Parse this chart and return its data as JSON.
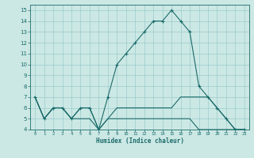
{
  "xlabel": "Humidex (Indice chaleur)",
  "xlim": [
    -0.5,
    23.5
  ],
  "ylim": [
    4,
    15.5
  ],
  "xticks": [
    0,
    1,
    2,
    3,
    4,
    5,
    6,
    7,
    8,
    9,
    10,
    11,
    12,
    13,
    14,
    15,
    16,
    17,
    18,
    19,
    20,
    21,
    22,
    23
  ],
  "yticks": [
    4,
    5,
    6,
    7,
    8,
    9,
    10,
    11,
    12,
    13,
    14,
    15
  ],
  "bg_color": "#cce8e4",
  "line_color": "#1a6b6b",
  "grid_color": "#99cccc",
  "line1_x": [
    0,
    1,
    2,
    3,
    4,
    5,
    6,
    7,
    8,
    9,
    10,
    11,
    12,
    13,
    14,
    15,
    16,
    17,
    18,
    19,
    20,
    21,
    22,
    23
  ],
  "line1_y": [
    7,
    5,
    6,
    6,
    5,
    6,
    6,
    4,
    7,
    10,
    11,
    12,
    13,
    14,
    14,
    15,
    14,
    13,
    8,
    7,
    6,
    5,
    4,
    4
  ],
  "line2_x": [
    0,
    1,
    2,
    3,
    4,
    5,
    6,
    7,
    8,
    9,
    10,
    11,
    12,
    13,
    14,
    15,
    16,
    17,
    18,
    19,
    20,
    21,
    22,
    23
  ],
  "line2_y": [
    7,
    5,
    6,
    6,
    5,
    6,
    6,
    4,
    5,
    6,
    6,
    6,
    6,
    6,
    6,
    6,
    7,
    7,
    7,
    7,
    6,
    5,
    4,
    4
  ],
  "line3_x": [
    0,
    1,
    2,
    3,
    4,
    5,
    6,
    7,
    8,
    9,
    10,
    11,
    12,
    13,
    14,
    15,
    16,
    17,
    18,
    19,
    20,
    21,
    22,
    23
  ],
  "line3_y": [
    7,
    5,
    6,
    6,
    5,
    5,
    5,
    4,
    5,
    5,
    5,
    5,
    5,
    5,
    5,
    5,
    5,
    5,
    4,
    4,
    4,
    4,
    4,
    4
  ]
}
